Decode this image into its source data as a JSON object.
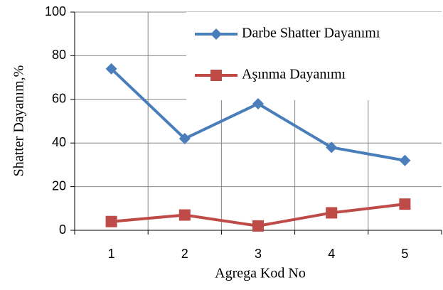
{
  "chart_data": {
    "type": "line",
    "x_label": "Agrega Kod No",
    "y_label": "Shatter Dayanım,%",
    "categories": [
      "1",
      "2",
      "3",
      "4",
      "5"
    ],
    "series": [
      {
        "name": "Darbe Shatter Dayanımı",
        "color": "#4a7ebb",
        "marker": "diamond",
        "values": [
          74,
          42,
          58,
          38,
          32
        ]
      },
      {
        "name": "Aşınma Dayanımı",
        "color": "#be4b48",
        "marker": "square",
        "values": [
          4,
          7,
          2,
          8,
          12
        ]
      }
    ],
    "ylim": [
      0,
      100
    ],
    "yticks": [
      0,
      20,
      40,
      60,
      80,
      100
    ],
    "grid": true,
    "legend": "top-right"
  }
}
